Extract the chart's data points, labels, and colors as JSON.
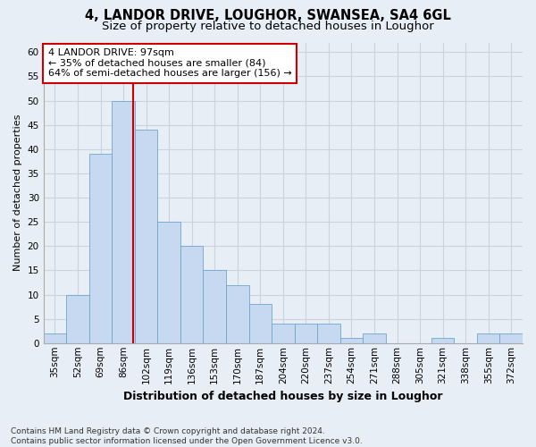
{
  "title1": "4, LANDOR DRIVE, LOUGHOR, SWANSEA, SA4 6GL",
  "title2": "Size of property relative to detached houses in Loughor",
  "xlabel": "Distribution of detached houses by size in Loughor",
  "ylabel": "Number of detached properties",
  "categories": [
    "35sqm",
    "52sqm",
    "69sqm",
    "86sqm",
    "102sqm",
    "119sqm",
    "136sqm",
    "153sqm",
    "170sqm",
    "187sqm",
    "204sqm",
    "220sqm",
    "237sqm",
    "254sqm",
    "271sqm",
    "288sqm",
    "305sqm",
    "321sqm",
    "338sqm",
    "355sqm",
    "372sqm"
  ],
  "values": [
    2,
    10,
    39,
    50,
    44,
    25,
    20,
    15,
    12,
    8,
    4,
    4,
    4,
    1,
    2,
    0,
    0,
    1,
    0,
    2,
    2
  ],
  "bar_color": "#c6d9f0",
  "bar_edge_color": "#6ea6cc",
  "grid_color": "#c8d4e0",
  "background_color": "#e8eef5",
  "vline_color": "#cc0000",
  "annotation_text": "4 LANDOR DRIVE: 97sqm\n← 35% of detached houses are smaller (84)\n64% of semi-detached houses are larger (156) →",
  "annotation_box_color": "#ffffff",
  "annotation_box_edge": "#cc0000",
  "ylim": [
    0,
    62
  ],
  "yticks": [
    0,
    5,
    10,
    15,
    20,
    25,
    30,
    35,
    40,
    45,
    50,
    55,
    60
  ],
  "footer1": "Contains HM Land Registry data © Crown copyright and database right 2024.",
  "footer2": "Contains public sector information licensed under the Open Government Licence v3.0.",
  "title1_fontsize": 10.5,
  "title2_fontsize": 9.5,
  "xlabel_fontsize": 9,
  "ylabel_fontsize": 8,
  "tick_fontsize": 7.5,
  "annotation_fontsize": 8,
  "footer_fontsize": 6.5,
  "vline_position": 4.42
}
